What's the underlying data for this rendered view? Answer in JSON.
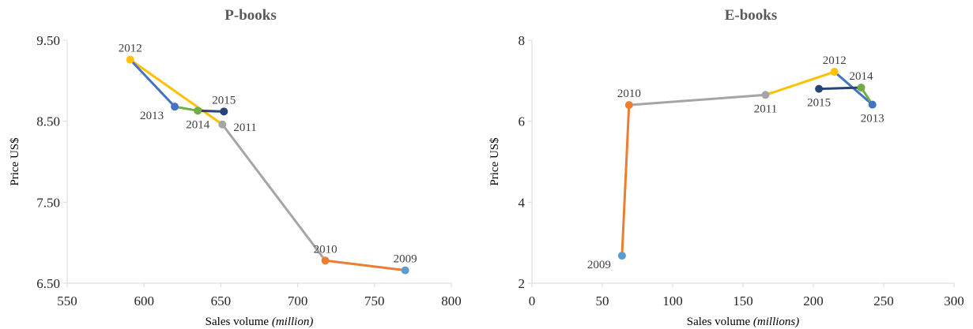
{
  "chart_data": [
    {
      "type": "line",
      "title": "P-books",
      "xlabel": "Sales volume",
      "xlabel_unit": "(million)",
      "ylabel": "Price US$",
      "xlim": [
        550,
        800
      ],
      "ylim": [
        6.5,
        9.5
      ],
      "xticks": [
        "550",
        "600",
        "650",
        "700",
        "750",
        "800"
      ],
      "yticks": [
        "6.50",
        "7.50",
        "8.50",
        "9.50"
      ],
      "grid": false,
      "points": [
        {
          "label": "2009",
          "x": 770,
          "y": 6.66,
          "color": "#5b9bd5",
          "label_pos": "above"
        },
        {
          "label": "2010",
          "x": 718,
          "y": 6.78,
          "color": "#ed7d31",
          "label_pos": "above"
        },
        {
          "label": "2011",
          "x": 651,
          "y": 8.46,
          "color": "#a5a5a5",
          "label_pos": "right"
        },
        {
          "label": "2012",
          "x": 591,
          "y": 9.26,
          "color": "#ffc000",
          "label_pos": "above"
        },
        {
          "label": "2013",
          "x": 620,
          "y": 8.68,
          "color": "#4472c4",
          "label_pos": "left"
        },
        {
          "label": "2014",
          "x": 635,
          "y": 8.63,
          "color": "#70ad47",
          "label_pos": "below"
        },
        {
          "label": "2015",
          "x": 652,
          "y": 8.62,
          "color": "#264478",
          "label_pos": "above"
        }
      ]
    },
    {
      "type": "line",
      "title": "E-books",
      "xlabel": "Sales volume",
      "xlabel_unit": "(millions)",
      "ylabel": "Price US$",
      "xlim": [
        0,
        300
      ],
      "ylim": [
        2,
        8
      ],
      "xticks": [
        "0",
        "50",
        "100",
        "150",
        "200",
        "250",
        "300"
      ],
      "yticks": [
        "2",
        "4",
        "6",
        "8"
      ],
      "grid": false,
      "points": [
        {
          "label": "2009",
          "x": 64,
          "y": 2.68,
          "color": "#5b9bd5",
          "label_pos": "left"
        },
        {
          "label": "2010",
          "x": 69,
          "y": 6.4,
          "color": "#ed7d31",
          "label_pos": "above"
        },
        {
          "label": "2011",
          "x": 166,
          "y": 6.65,
          "color": "#a5a5a5",
          "label_pos": "below"
        },
        {
          "label": "2012",
          "x": 215,
          "y": 7.22,
          "color": "#ffc000",
          "label_pos": "above"
        },
        {
          "label": "2013",
          "x": 242,
          "y": 6.41,
          "color": "#4472c4",
          "label_pos": "below"
        },
        {
          "label": "2014",
          "x": 234,
          "y": 6.83,
          "color": "#70ad47",
          "label_pos": "above"
        },
        {
          "label": "2015",
          "x": 204,
          "y": 6.8,
          "color": "#264478",
          "label_pos": "below"
        }
      ]
    }
  ]
}
